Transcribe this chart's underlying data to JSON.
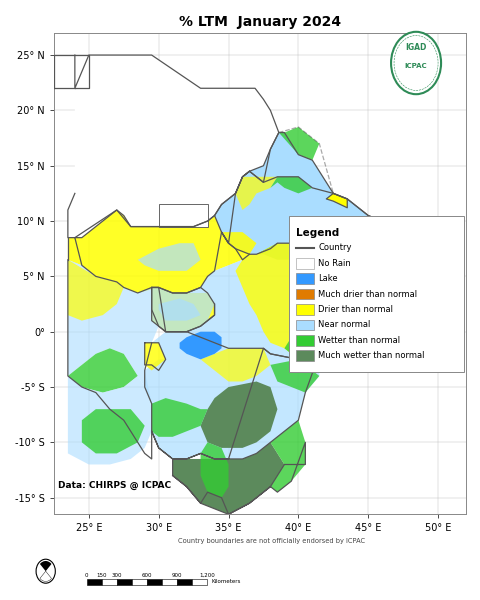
{
  "title": "% LTM  January 2024",
  "title_fontsize": 10,
  "background_color": "#ffffff",
  "map_bg": "#ffffff",
  "fig_width": 4.81,
  "fig_height": 6.0,
  "dpi": 100,
  "xlim": [
    22.5,
    52.0
  ],
  "ylim": [
    -16.5,
    27.0
  ],
  "xticks": [
    25,
    30,
    35,
    40,
    45,
    50
  ],
  "yticks": [
    -15,
    -10,
    -5,
    0,
    5,
    10,
    15,
    20,
    25
  ],
  "xtick_labels": [
    "25° E",
    "30° E",
    "35° E",
    "40° E",
    "45° E",
    "50° E"
  ],
  "ytick_labels": [
    "-15° S",
    "-10° S",
    "-5° S",
    "0°",
    "5° N",
    "10° N",
    "15° N",
    "20° N",
    "25° N"
  ],
  "legend_title": "Legend",
  "legend_items": [
    {
      "label": "Country",
      "color": "#555555",
      "type": "line"
    },
    {
      "label": "No Rain",
      "color": "#ffffff",
      "type": "rect",
      "edgecolor": "#aaaaaa"
    },
    {
      "label": "Lake",
      "color": "#3399ff",
      "type": "rect"
    },
    {
      "label": "Much drier than normal",
      "color": "#e07b00",
      "type": "rect"
    },
    {
      "label": "Drier than normal",
      "color": "#ffff00",
      "type": "rect"
    },
    {
      "label": "Near normal",
      "color": "#aaddff",
      "type": "rect"
    },
    {
      "label": "Wetter than normal",
      "color": "#33cc33",
      "type": "rect"
    },
    {
      "label": "Much wetter than normal",
      "color": "#5c8a5c",
      "type": "rect"
    }
  ],
  "data_source": "Data: CHIRPS @ ICPAC",
  "disclaimer": "Country boundaries are not officially endorsed by ICPAC",
  "colors": {
    "lake": "#3399ff",
    "much_drier": "#e07b00",
    "drier": "#ffff00",
    "near_normal": "#aaddff",
    "wetter": "#33cc33",
    "much_wetter": "#5c8a5c",
    "country_border": "#555555",
    "no_rain": "#ffffff",
    "outside": "#ffffff"
  }
}
